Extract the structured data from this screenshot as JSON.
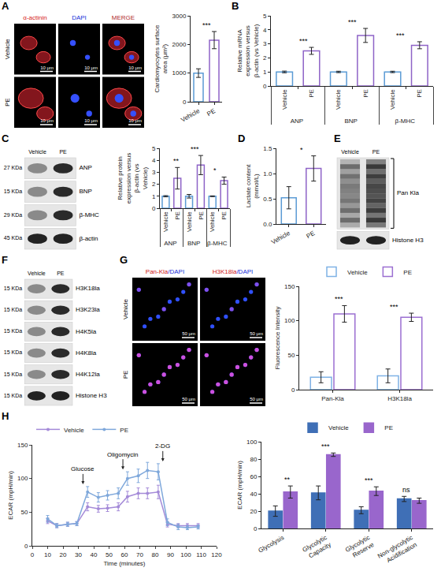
{
  "chart_data": [
    {
      "type": "bar",
      "categories": [
        "Vehicle",
        "PE"
      ],
      "values": [
        1000,
        2150
      ],
      "errors": [
        150,
        300
      ],
      "colors": [
        "#5b9bd5",
        "#8e63c7"
      ],
      "marker": "hollow",
      "ylabel": "Cardiomyocytes surface area (μm²)",
      "ylim": [
        0,
        3000
      ],
      "yticks": [
        0,
        1000,
        2000,
        3000
      ],
      "annotations": [
        {
          "text": "***"
        }
      ]
    },
    {
      "panel": "B",
      "type": "bar",
      "categories": [
        "ANP",
        "BNP",
        "β-MHC"
      ],
      "series": [
        {
          "name": "Vehicle",
          "color": "#5b9bd5",
          "marker": "hollow",
          "values": [
            1,
            1,
            1
          ],
          "errors": [
            0.06,
            0.05,
            0.05
          ]
        },
        {
          "name": "PE",
          "color": "#8e63c7",
          "marker": "hollow",
          "values": [
            2.5,
            3.6,
            2.9
          ],
          "errors": [
            0.25,
            0.5,
            0.25
          ]
        }
      ],
      "ylabel": "Relative mRNA expression versus β-actin (vs Vehicle)",
      "ylim": [
        0,
        5
      ],
      "yticks": [
        0,
        1,
        2,
        3,
        4,
        5
      ],
      "annotations": [
        {
          "category": "ANP",
          "text": "***"
        },
        {
          "category": "BNP",
          "text": "***"
        },
        {
          "category": "β-MHC",
          "text": "***"
        }
      ]
    },
    {
      "type": "bar",
      "categories": [
        "ANP",
        "BNP",
        "β-MHC"
      ],
      "series": [
        {
          "name": "Vehicle",
          "color": "#5b9bd5",
          "marker": "hollow",
          "values": [
            1,
            1,
            1
          ],
          "errors": [
            0.05,
            0.15,
            0.03
          ]
        },
        {
          "name": "PE",
          "color": "#8e63c7",
          "marker": "hollow",
          "values": [
            2.5,
            3.6,
            2.3
          ],
          "errors": [
            0.9,
            0.8,
            0.3
          ]
        }
      ],
      "ylabel": "Relative protein expression versus β-actin (vs Vehicle)",
      "ylim": [
        0,
        5
      ],
      "yticks": [
        0,
        1,
        2,
        3,
        4,
        5
      ],
      "annotations": [
        {
          "category": "ANP",
          "text": "**"
        },
        {
          "category": "BNP",
          "text": "***"
        },
        {
          "category": "β-MHC",
          "text": "*"
        }
      ]
    },
    {
      "panel": "D",
      "type": "bar",
      "categories": [
        "Vehicle",
        "PE"
      ],
      "values": [
        0.52,
        1.1
      ],
      "errors": [
        0.22,
        0.25
      ],
      "colors": [
        "#5b9bd5",
        "#8e63c7"
      ],
      "marker": "hollow",
      "ylabel": "Lactate content (mmol/L)",
      "ylim": [
        0,
        1.5
      ],
      "yticks": [
        {
          "value": 0,
          "label": "0.0"
        },
        {
          "value": 0.5,
          "label": "0.5"
        },
        {
          "value": 1,
          "label": "1.0"
        },
        {
          "value": 1.5,
          "label": "1.5"
        }
      ],
      "annotations": [
        {
          "text": "*"
        }
      ]
    },
    {
      "type": "bar",
      "categories": [
        "Pan-Kla",
        "H3K18la"
      ],
      "series": [
        {
          "name": "Vehicle",
          "color": "#7fb2e5",
          "marker": "hollow",
          "values": [
            18,
            20
          ],
          "errors": [
            8,
            10
          ]
        },
        {
          "name": "PE",
          "color": "#9b6fd1",
          "marker": "hollow",
          "values": [
            110,
            105
          ],
          "errors": [
            12,
            6
          ]
        }
      ],
      "ylabel": "Fluorescence Intensity",
      "ylim": [
        0,
        150
      ],
      "yticks": [
        0,
        50,
        100,
        150
      ],
      "legend": "top",
      "annotations": [
        {
          "category": "Pan-Kla",
          "text": "***"
        },
        {
          "category": "H3K18la",
          "text": "***"
        }
      ]
    },
    {
      "panel": "H",
      "type": "line",
      "marker": "circle",
      "x": [
        10,
        16,
        23,
        29,
        36,
        43,
        49,
        56,
        62,
        69,
        75,
        82,
        88,
        95,
        101,
        108
      ],
      "series": [
        {
          "name": "Vehicle",
          "color": "#a48ad8",
          "values": [
            37,
            30,
            32,
            33,
            58,
            55,
            56,
            58,
            73,
            78,
            78,
            80,
            32,
            30,
            30,
            30
          ],
          "errors": [
            4,
            3,
            3,
            3,
            6,
            5,
            5,
            6,
            8,
            8,
            8,
            10,
            4,
            3,
            3,
            3
          ]
        },
        {
          "name": "PE",
          "color": "#7fa8db",
          "values": [
            40,
            30,
            32,
            33,
            80,
            72,
            75,
            78,
            100,
            104,
            112,
            110,
            35,
            28,
            27,
            28
          ],
          "errors": [
            5,
            3,
            3,
            3,
            8,
            7,
            7,
            8,
            10,
            10,
            12,
            12,
            5,
            4,
            3,
            3
          ]
        }
      ],
      "xlabel": "Time (minutes)",
      "ylabel": "ECAR (mpH/min)",
      "xlim": [
        0,
        120
      ],
      "xticks": [
        0,
        10,
        20,
        30,
        40,
        50,
        60,
        70,
        80,
        90,
        100,
        110,
        120
      ],
      "ylim": [
        0,
        150
      ],
      "yticks": [
        0,
        50,
        100,
        150
      ],
      "legend": "top left",
      "annotations": [
        {
          "x": 33,
          "text": "Glucose"
        },
        {
          "x": 59,
          "text": "Oligomycin"
        },
        {
          "x": 85,
          "text": "2-DG"
        }
      ]
    },
    {
      "type": "bar",
      "categories": [
        "Glycolysis",
        "Glycolytic Capacity",
        "Glycolytic Reserve",
        "Non-glycolytic Acidification"
      ],
      "series": [
        {
          "name": "Vehicle",
          "color": "#3f6fb6",
          "marker": "filled",
          "values": [
            20,
            41,
            21,
            34
          ],
          "errors": [
            6,
            8,
            4,
            3
          ]
        },
        {
          "name": "PE",
          "color": "#9966cc",
          "marker": "filled",
          "values": [
            42,
            85,
            43,
            32
          ],
          "errors": [
            7,
            2,
            5,
            3
          ]
        }
      ],
      "ylabel": "ECAR (mpH/min)",
      "ylim": [
        0,
        100
      ],
      "yticks": [
        0,
        20,
        40,
        60,
        80,
        100
      ],
      "legend": "top",
      "annotations": [
        {
          "category": "Glycolysis",
          "text": "**"
        },
        {
          "category": "Glycolytic Capacity",
          "text": "***"
        },
        {
          "category": "Glycolytic Reserve",
          "text": "***"
        },
        {
          "category": "Non-glycolytic Acidification",
          "text": "ns"
        }
      ]
    }
  ],
  "images": {
    "A": {
      "panel": "A",
      "columns": [
        "α-actinin",
        "DAPI",
        "MERGE"
      ],
      "rows": [
        "Vehicle",
        "PE"
      ],
      "scale_bar": "10 μm"
    },
    "G": {
      "panel": "G",
      "columns": [
        "Pan-Kla/DAPI",
        "H3K18la/DAPI"
      ],
      "rows": [
        "Vehicle",
        "PE"
      ],
      "scale_bar": "50 μm"
    }
  },
  "blots": {
    "C": {
      "panel": "C",
      "lanes": [
        "Vehicle",
        "PE"
      ],
      "rows": [
        {
          "label": "ANP",
          "size": "27 KDa"
        },
        {
          "label": "BNP",
          "size": "15 KDa"
        },
        {
          "label": "β-MHC",
          "size": "29 KDa"
        },
        {
          "label": "β-actin",
          "size": "45 KDa"
        }
      ]
    },
    "E": {
      "panel": "E",
      "lanes": [
        "Vehicle",
        "PE"
      ],
      "rows": [
        {
          "label": "Pan Kla"
        },
        {
          "label": "Histone H3"
        }
      ]
    },
    "F": {
      "panel": "F",
      "lanes": [
        "Vehicle",
        "PE"
      ],
      "rows": [
        {
          "label": "H3K18la",
          "size": "15 KDa"
        },
        {
          "label": "H3K23la",
          "size": "15 KDa"
        },
        {
          "label": "H4K5la",
          "size": "15 KDa"
        },
        {
          "label": "H4K8la",
          "size": "15 KDa"
        },
        {
          "label": "H4K12la",
          "size": "15 KDa"
        },
        {
          "label": "Histone H3",
          "size": "15 KDa"
        }
      ]
    }
  }
}
